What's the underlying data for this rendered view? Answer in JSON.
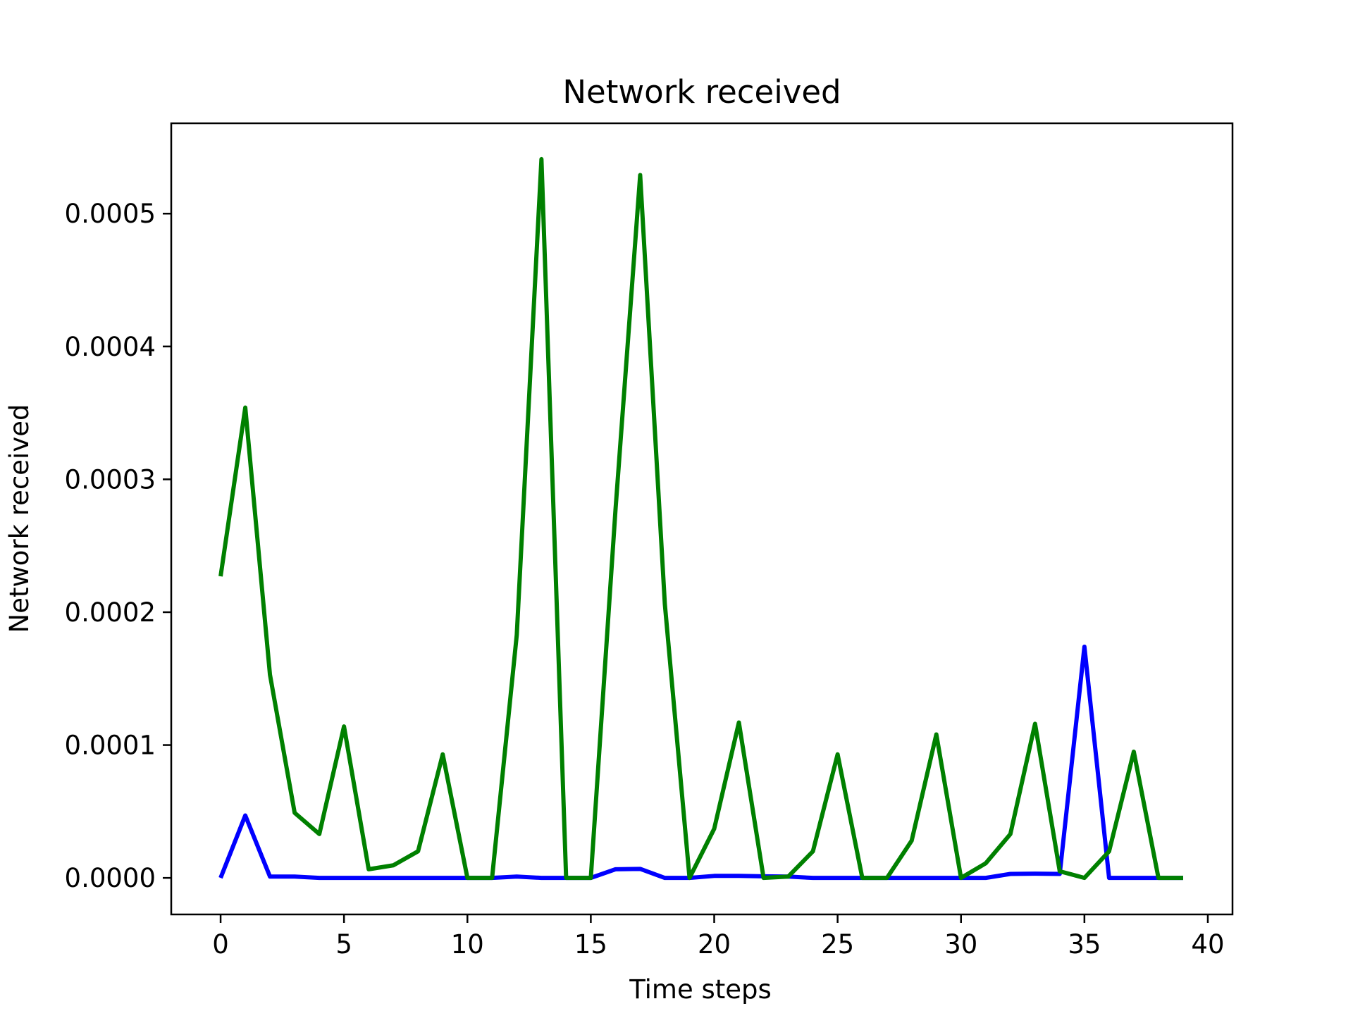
{
  "chart_data": {
    "type": "line",
    "title": "Network received",
    "xlabel": "Time steps",
    "ylabel": "Network received",
    "xlim": [
      -2,
      41
    ],
    "ylim": [
      -2.75e-05,
      0.000568
    ],
    "xticks": [
      0,
      5,
      10,
      15,
      20,
      25,
      30,
      35,
      40
    ],
    "xtick_labels": [
      "0",
      "5",
      "10",
      "15",
      "20",
      "25",
      "30",
      "35",
      "40"
    ],
    "yticks": [
      0,
      0.0001,
      0.0002,
      0.0003,
      0.0004,
      0.0005
    ],
    "ytick_labels": [
      "0.0000",
      "0.0001",
      "0.0002",
      "0.0003",
      "0.0004",
      "0.0005"
    ],
    "grid": false,
    "legend": "none",
    "x": [
      0,
      1,
      2,
      3,
      4,
      5,
      6,
      7,
      8,
      9,
      10,
      11,
      12,
      13,
      14,
      15,
      16,
      17,
      18,
      19,
      20,
      21,
      22,
      23,
      24,
      25,
      26,
      27,
      28,
      29,
      30,
      31,
      32,
      33,
      34,
      35,
      36,
      37,
      38,
      39
    ],
    "series": [
      {
        "color": "#0000ff",
        "values": [
          0,
          4.7e-05,
          1e-06,
          1e-06,
          0,
          0,
          0,
          0,
          0,
          0,
          0,
          0,
          1e-06,
          0,
          0,
          0,
          6.5e-06,
          6.8e-06,
          0,
          0,
          1.5e-06,
          1.5e-06,
          1.2e-06,
          1e-06,
          0,
          0,
          0,
          0,
          0,
          0,
          0,
          0,
          3e-06,
          3.2e-06,
          3e-06,
          0.000174,
          0,
          0,
          0,
          0
        ]
      },
      {
        "color": "#008000",
        "values": [
          0.000227,
          0.000354,
          0.000153,
          4.9e-05,
          3.3e-05,
          0.000114,
          6.5e-06,
          9.5e-06,
          2e-05,
          9.3e-05,
          0,
          0,
          0.000183,
          0.000541,
          0,
          0,
          0.000277,
          0.000529,
          0.000206,
          0,
          3.7e-05,
          0.000117,
          0,
          1e-06,
          2e-05,
          9.3e-05,
          0,
          0,
          2.8e-05,
          0.000108,
          0,
          1.1e-05,
          3.3e-05,
          0.000116,
          5e-06,
          0,
          2e-05,
          9.5e-05,
          0,
          0
        ]
      }
    ]
  }
}
